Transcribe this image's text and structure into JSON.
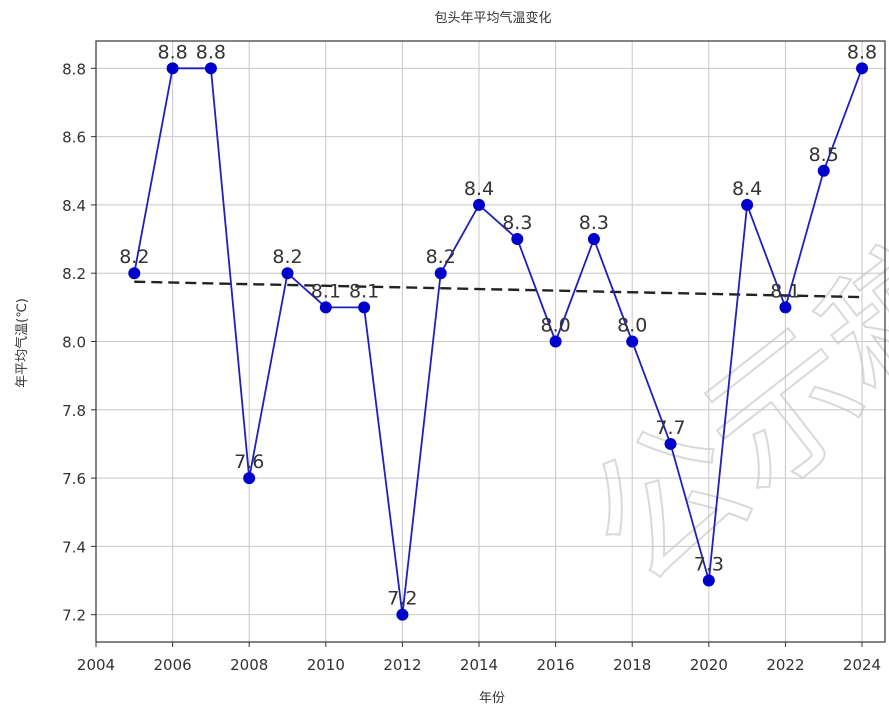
{
  "chart_data": {
    "type": "line",
    "title": "包头年平均气温变化",
    "xlabel": "年份",
    "ylabel": "年平均气温(℃)",
    "xlim": [
      2004,
      2024.6
    ],
    "ylim": [
      7.12,
      8.88
    ],
    "x_ticks": [
      2004,
      2006,
      2008,
      2010,
      2012,
      2014,
      2016,
      2018,
      2020,
      2022,
      2024
    ],
    "y_ticks": [
      7.2,
      7.4,
      7.6,
      7.8,
      8.0,
      8.2,
      8.4,
      8.6,
      8.8
    ],
    "grid": true,
    "series": [
      {
        "x": [
          2005,
          2006,
          2007,
          2008,
          2009,
          2010,
          2011,
          2012,
          2013,
          2014,
          2015,
          2016,
          2017,
          2018,
          2019,
          2020,
          2021,
          2022,
          2023,
          2024
        ],
        "values": [
          8.2,
          8.8,
          8.8,
          7.6,
          8.2,
          8.1,
          8.1,
          7.2,
          8.2,
          8.4,
          8.3,
          8.0,
          8.3,
          8.0,
          7.7,
          7.3,
          8.4,
          8.1,
          8.5,
          8.8
        ],
        "labels": [
          "8.2",
          "8.8",
          "8.8",
          "7.6",
          "8.2",
          "8.1",
          "8.1",
          "7.2",
          "8.2",
          "8.4",
          "8.3",
          "8.0",
          "8.3",
          "8.0",
          "7.7",
          "7.3",
          "8.4",
          "8.1",
          "8.5",
          "8.8"
        ],
        "color": "#1f1fbf",
        "marker_color": "#0000cc"
      }
    ],
    "trend_line": {
      "x": [
        2005,
        2024
      ],
      "y": [
        8.175,
        8.13
      ],
      "color": "#222222",
      "style": "dashed"
    }
  },
  "watermark": "公示稿"
}
